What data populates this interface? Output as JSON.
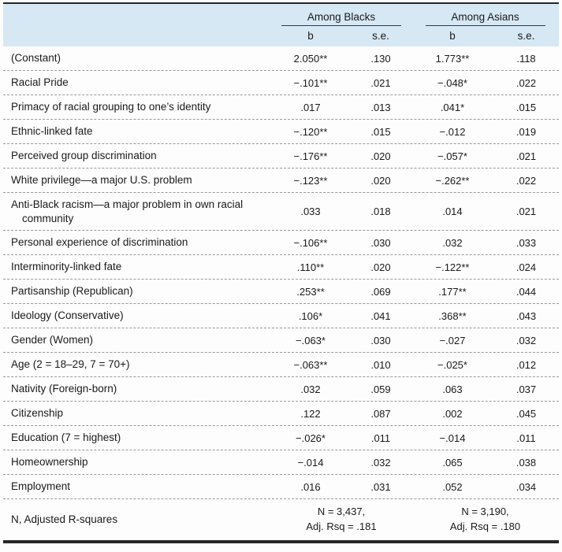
{
  "colors": {
    "header_bg": "#d6e8f4",
    "border": "#262626",
    "divider": "#999999",
    "text": "#1a1a1a"
  },
  "chart_data": {
    "type": "table",
    "column_groups": [
      {
        "label": "Among Blacks",
        "columns": [
          "b",
          "s.e."
        ]
      },
      {
        "label": "Among Asians",
        "columns": [
          "b",
          "s.e."
        ]
      }
    ],
    "rows": [
      {
        "label": "(Constant)",
        "values": [
          "2.050**",
          ".130",
          "1.773**",
          ".118"
        ]
      },
      {
        "label": "Racial Pride",
        "values": [
          "−.101**",
          ".021",
          "−.048*",
          ".022"
        ]
      },
      {
        "label": "Primacy of racial grouping to one’s identity",
        "values": [
          ".017",
          ".013",
          ".041*",
          ".015"
        ]
      },
      {
        "label": "Ethnic-linked fate",
        "values": [
          "−.120**",
          ".015",
          "−.012",
          ".019"
        ]
      },
      {
        "label": "Perceived group discrimination",
        "values": [
          "−.176**",
          ".020",
          "−.057*",
          ".021"
        ]
      },
      {
        "label": "White privilege—a major U.S. problem",
        "values": [
          "−.123**",
          ".020",
          "−.262**",
          ".022"
        ]
      },
      {
        "label": "Anti-Black racism—a major problem in own racial community",
        "values": [
          ".033",
          ".018",
          ".014",
          ".021"
        ]
      },
      {
        "label": "Personal experience of discrimination",
        "values": [
          "−.106**",
          ".030",
          ".032",
          ".033"
        ]
      },
      {
        "label": "Interminority-linked fate",
        "values": [
          ".110**",
          ".020",
          "−.122**",
          ".024"
        ]
      },
      {
        "label": "Partisanship (Republican)",
        "values": [
          ".253**",
          ".069",
          ".177**",
          ".044"
        ]
      },
      {
        "label": "Ideology (Conservative)",
        "values": [
          ".106*",
          ".041",
          ".368**",
          ".043"
        ]
      },
      {
        "label": "Gender (Women)",
        "values": [
          "−.063*",
          ".030",
          "−.027",
          ".032"
        ]
      },
      {
        "label": "Age (2 = 18–29, 7 = 70+)",
        "values": [
          "−.063**",
          ".010",
          "−.025*",
          ".012"
        ]
      },
      {
        "label": "Nativity (Foreign-born)",
        "values": [
          ".032",
          ".059",
          ".063",
          ".037"
        ]
      },
      {
        "label": "Citizenship",
        "values": [
          ".122",
          ".087",
          ".002",
          ".045"
        ]
      },
      {
        "label": "Education (7 = highest)",
        "values": [
          "−.026*",
          ".011",
          "−.014",
          ".011"
        ]
      },
      {
        "label": "Homeownership",
        "values": [
          "−.014",
          ".032",
          ".065",
          ".038"
        ]
      },
      {
        "label": "Employment",
        "values": [
          ".016",
          ".031",
          ".052",
          ".034"
        ]
      }
    ],
    "footer": {
      "label": "N, Adjusted R-squares",
      "cells": [
        [
          "N = 3,437,",
          "Adj. Rsq = .181"
        ],
        [
          "N = 3,190,",
          "Adj. Rsq = .180"
        ]
      ]
    }
  }
}
